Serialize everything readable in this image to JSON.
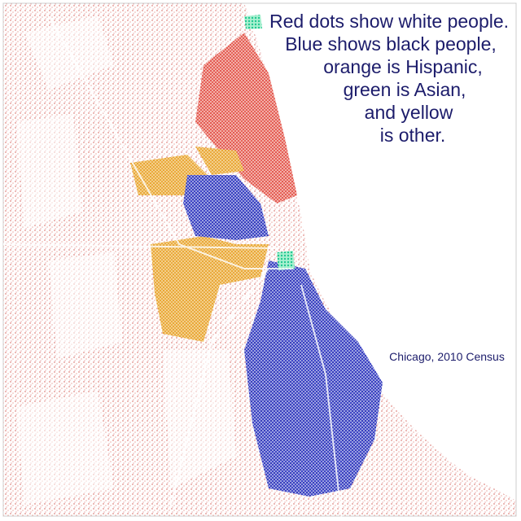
{
  "caption": {
    "lines": [
      "Red dots show white people.",
      "Blue shows black people,",
      "orange is Hispanic,",
      "green is Asian,",
      "and yellow",
      "is other."
    ]
  },
  "source": "Chicago, 2010 Census"
}
